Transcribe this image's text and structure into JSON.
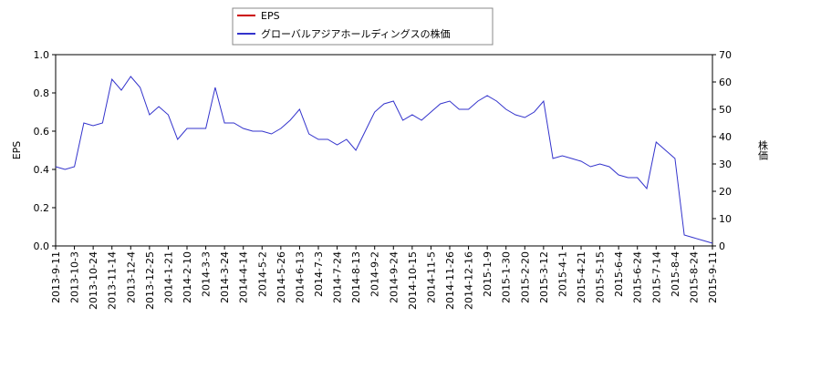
{
  "chart_data": {
    "type": "line",
    "categories": [
      "2013-9-11",
      null,
      "2013-10-3",
      null,
      "2013-10-24",
      null,
      "2013-11-14",
      null,
      "2013-12-4",
      null,
      "2013-12-25",
      null,
      "2014-1-21",
      null,
      "2014-2-10",
      null,
      "2014-3-3",
      null,
      "2014-3-24",
      null,
      "2014-4-14",
      null,
      "2014-5-2",
      null,
      "2014-5-26",
      null,
      "2014-6-13",
      null,
      "2014-7-3",
      null,
      "2014-7-24",
      null,
      "2014-8-13",
      null,
      "2014-9-2",
      null,
      "2014-9-24",
      null,
      "2014-10-15",
      null,
      "2014-11-5",
      null,
      "2014-11-26",
      null,
      "2014-12-16",
      null,
      "2015-1-9",
      null,
      "2015-1-30",
      null,
      "2015-2-20",
      null,
      "2015-3-12",
      null,
      "2015-4-1",
      null,
      "2015-4-21",
      null,
      "2015-5-15",
      null,
      "2015-6-4",
      null,
      "2015-6-24",
      null,
      "2015-7-14",
      null,
      "2015-8-4",
      null,
      "2015-8-24",
      null,
      "2015-9-11"
    ],
    "series": [
      {
        "name": "EPS",
        "color": "#cc0000",
        "values": [
          null,
          null,
          null,
          null,
          null,
          null,
          null,
          null,
          null,
          null,
          null,
          null,
          null,
          null,
          null,
          null,
          null,
          null,
          null,
          null,
          null,
          null,
          null,
          null,
          null,
          null,
          null,
          null,
          null,
          null,
          null,
          null,
          null,
          null,
          null,
          null,
          null,
          null,
          null,
          null,
          null,
          null,
          null,
          null,
          null,
          null,
          null,
          null,
          null,
          null,
          null,
          null,
          null,
          null,
          null,
          null,
          null,
          null,
          null,
          null,
          null,
          null,
          null,
          null,
          null,
          null,
          null,
          null,
          null,
          null,
          null
        ]
      },
      {
        "name": "グローバルアジアホールディングスの株価",
        "color": "#3333cc",
        "axis": "y2",
        "values": [
          29,
          28,
          29,
          45,
          44,
          45,
          61,
          57,
          62,
          58,
          48,
          51,
          48,
          39,
          43,
          43,
          43,
          58,
          45,
          45,
          43,
          42,
          42,
          41,
          43,
          46,
          50,
          41,
          39,
          39,
          37,
          39,
          35,
          42,
          49,
          52,
          53,
          46,
          48,
          46,
          49,
          52,
          53,
          50,
          50,
          53,
          55,
          53,
          50,
          48,
          47,
          49,
          53,
          32,
          33,
          32,
          31,
          29,
          30,
          29,
          26,
          25,
          25,
          21,
          38,
          35,
          32,
          4,
          3,
          2,
          1
        ]
      }
    ],
    "ylabel": "EPS",
    "y2label": "株価",
    "ylim": [
      0,
      1
    ],
    "yticks": [
      {
        "value": 0,
        "label": "0.0"
      },
      0.2,
      0.4,
      0.6,
      0.8,
      {
        "value": 1,
        "label": "1.0"
      }
    ],
    "y2lim": [
      0,
      70
    ],
    "y2ticks": [
      0,
      10,
      20,
      30,
      40,
      50,
      60,
      70
    ],
    "legend": "top"
  }
}
